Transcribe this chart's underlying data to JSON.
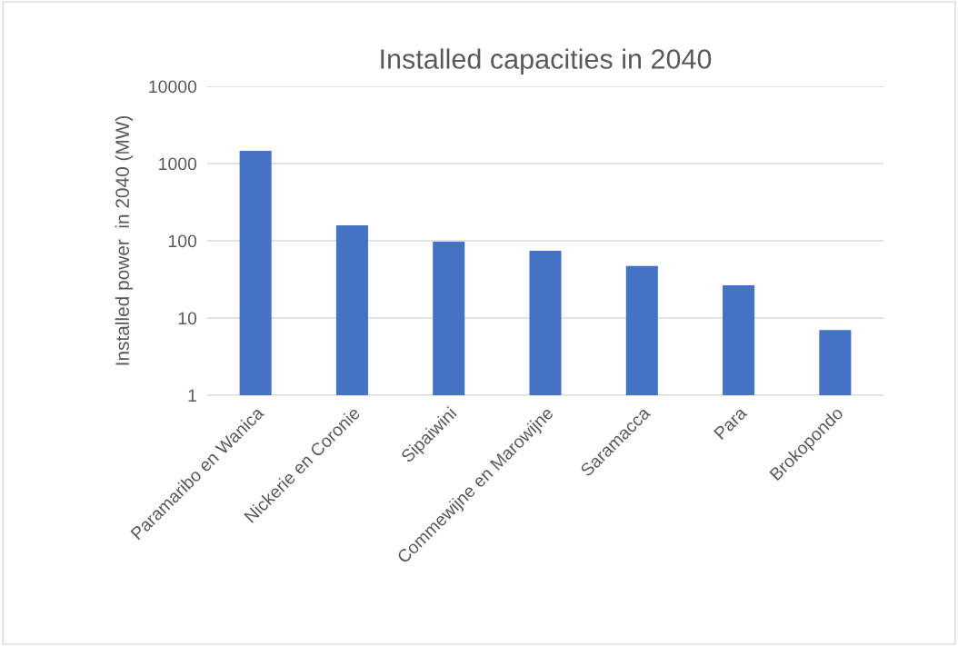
{
  "chart_data": {
    "type": "bar",
    "title": "Installed capacities in 2040",
    "ylabel": "Installed power  in 2040 (MW)",
    "categories": [
      "Paramaribo en Wanica",
      "Nickerie en Coronie",
      "Sipaiwini",
      "Commewijne en Marowijne",
      "Saramacca",
      "Para",
      "Brokopondo"
    ],
    "values": [
      1460,
      158,
      97,
      74,
      47,
      26.5,
      7
    ],
    "color": "#4472c4",
    "log": true,
    "ylim": [
      1,
      10000
    ],
    "yticks": [
      1,
      10,
      100,
      1000,
      10000
    ],
    "grid": "y"
  }
}
